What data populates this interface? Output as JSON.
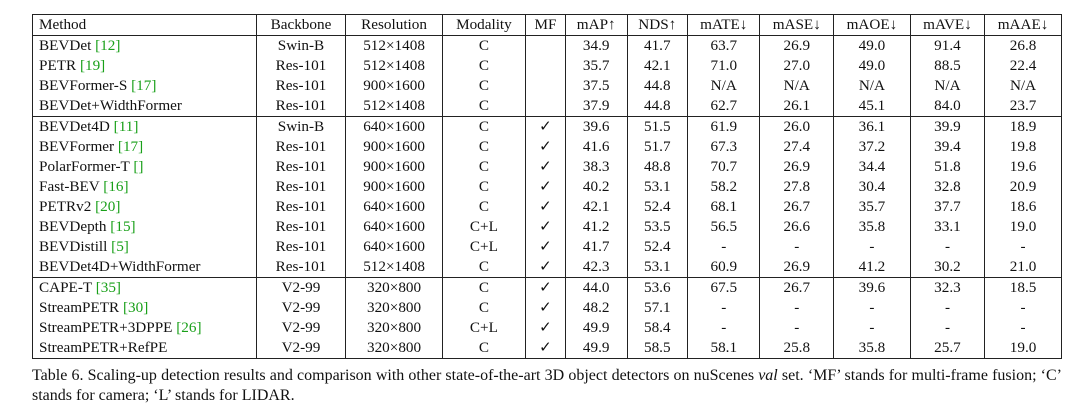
{
  "table": {
    "headers": [
      "Method",
      "Backbone",
      "Resolution",
      "Modality",
      "MF",
      "mAP↑",
      "NDS↑",
      "mATE↓",
      "mASE↓",
      "mAOE↓",
      "mAVE↓",
      "mAAE↓"
    ],
    "groups": [
      [
        {
          "name": "BEVDet",
          "cite": "[12]",
          "backbone": "Swin-B",
          "resolution": "512×1408",
          "modality": "C",
          "mf": "",
          "mAP": "34.9",
          "NDS": "41.7",
          "mATE": "63.7",
          "mASE": "26.9",
          "mAOE": "49.0",
          "mAVE": "91.4",
          "mAAE": "26.8"
        },
        {
          "name": "PETR",
          "cite": "[19]",
          "backbone": "Res-101",
          "resolution": "512×1408",
          "modality": "C",
          "mf": "",
          "mAP": "35.7",
          "NDS": "42.1",
          "mATE": "71.0",
          "mASE": "27.0",
          "mAOE": "49.0",
          "mAVE": "88.5",
          "mAAE": "22.4"
        },
        {
          "name": "BEVFormer-S",
          "cite": "[17]",
          "backbone": "Res-101",
          "resolution": "900×1600",
          "modality": "C",
          "mf": "",
          "mAP": "37.5",
          "NDS": "44.8",
          "mATE": "N/A",
          "mASE": "N/A",
          "mAOE": "N/A",
          "mAVE": "N/A",
          "mAAE": "N/A"
        },
        {
          "name": "BEVDet+WidthFormer",
          "cite": "",
          "backbone": "Res-101",
          "resolution": "512×1408",
          "modality": "C",
          "mf": "",
          "mAP": "37.9",
          "NDS": "44.8",
          "mATE": "62.7",
          "mASE": "26.1",
          "mAOE": "45.1",
          "mAVE": "84.0",
          "mAAE": "23.7"
        }
      ],
      [
        {
          "name": "BEVDet4D",
          "cite": "[11]",
          "backbone": "Swin-B",
          "resolution": "640×1600",
          "modality": "C",
          "mf": "✓",
          "mAP": "39.6",
          "NDS": "51.5",
          "mATE": "61.9",
          "mASE": "26.0",
          "mAOE": "36.1",
          "mAVE": "39.9",
          "mAAE": "18.9"
        },
        {
          "name": "BEVFormer",
          "cite": "[17]",
          "backbone": "Res-101",
          "resolution": "900×1600",
          "modality": "C",
          "mf": "✓",
          "mAP": "41.6",
          "NDS": "51.7",
          "mATE": "67.3",
          "mASE": "27.4",
          "mAOE": "37.2",
          "mAVE": "39.4",
          "mAAE": "19.8"
        },
        {
          "name": "PolarFormer-T",
          "cite": "[]",
          "backbone": "Res-101",
          "resolution": "900×1600",
          "modality": "C",
          "mf": "✓",
          "mAP": "38.3",
          "NDS": "48.8",
          "mATE": "70.7",
          "mASE": "26.9",
          "mAOE": "34.4",
          "mAVE": "51.8",
          "mAAE": "19.6"
        },
        {
          "name": "Fast-BEV",
          "cite": "[16]",
          "backbone": "Res-101",
          "resolution": "900×1600",
          "modality": "C",
          "mf": "✓",
          "mAP": "40.2",
          "NDS": "53.1",
          "mATE": "58.2",
          "mASE": "27.8",
          "mAOE": "30.4",
          "mAVE": "32.8",
          "mAAE": "20.9"
        },
        {
          "name": "PETRv2",
          "cite": "[20]",
          "backbone": "Res-101",
          "resolution": "640×1600",
          "modality": "C",
          "mf": "✓",
          "mAP": "42.1",
          "NDS": "52.4",
          "mATE": "68.1",
          "mASE": "26.7",
          "mAOE": "35.7",
          "mAVE": "37.7",
          "mAAE": "18.6"
        },
        {
          "name": "BEVDepth",
          "cite": "[15]",
          "backbone": "Res-101",
          "resolution": "640×1600",
          "modality": "C+L",
          "mf": "✓",
          "mAP": "41.2",
          "NDS": "53.5",
          "mATE": "56.5",
          "mASE": "26.6",
          "mAOE": "35.8",
          "mAVE": "33.1",
          "mAAE": "19.0"
        },
        {
          "name": "BEVDistill",
          "cite": "[5]",
          "backbone": "Res-101",
          "resolution": "640×1600",
          "modality": "C+L",
          "mf": "✓",
          "mAP": "41.7",
          "NDS": "52.4",
          "mATE": "-",
          "mASE": "-",
          "mAOE": "-",
          "mAVE": "-",
          "mAAE": "-"
        },
        {
          "name": "BEVDet4D+WidthFormer",
          "cite": "",
          "backbone": "Res-101",
          "resolution": "512×1408",
          "modality": "C",
          "mf": "✓",
          "mAP": "42.3",
          "NDS": "53.1",
          "mATE": "60.9",
          "mASE": "26.9",
          "mAOE": "41.2",
          "mAVE": "30.2",
          "mAAE": "21.0"
        }
      ],
      [
        {
          "name": "CAPE-T",
          "cite": "[35]",
          "backbone": "V2-99",
          "resolution": "320×800",
          "modality": "C",
          "mf": "✓",
          "mAP": "44.0",
          "NDS": "53.6",
          "mATE": "67.5",
          "mASE": "26.7",
          "mAOE": "39.6",
          "mAVE": "32.3",
          "mAAE": "18.5"
        },
        {
          "name": "StreamPETR",
          "cite": "[30]",
          "backbone": "V2-99",
          "resolution": "320×800",
          "modality": "C",
          "mf": "✓",
          "mAP": "48.2",
          "NDS": "57.1",
          "mATE": "-",
          "mASE": "-",
          "mAOE": "-",
          "mAVE": "-",
          "mAAE": "-"
        },
        {
          "name": "StreamPETR+3DPPE",
          "cite": "[26]",
          "backbone": "V2-99",
          "resolution": "320×800",
          "modality": "C+L",
          "mf": "✓",
          "mAP": "49.9",
          "NDS": "58.4",
          "mATE": "-",
          "mASE": "-",
          "mAOE": "-",
          "mAVE": "-",
          "mAAE": "-"
        },
        {
          "name": "StreamPETR+RefPE",
          "cite": "",
          "backbone": "V2-99",
          "resolution": "320×800",
          "modality": "C",
          "mf": "✓",
          "mAP": "49.9",
          "NDS": "58.5",
          "mATE": "58.1",
          "mASE": "25.8",
          "mAOE": "35.8",
          "mAVE": "25.7",
          "mAAE": "19.0"
        }
      ]
    ]
  },
  "caption": {
    "part1": "Table 6. Scaling-up detection results and comparison with other state-of-the-art 3D object detectors on nuScenes ",
    "italic": "val",
    "part2": " set. ‘MF’ stands for multi-frame fusion; ‘C’ stands for camera; ‘L’ stands for LIDAR."
  },
  "colors": {
    "citation": "#19a019",
    "text": "#111111",
    "rule": "#222222"
  }
}
